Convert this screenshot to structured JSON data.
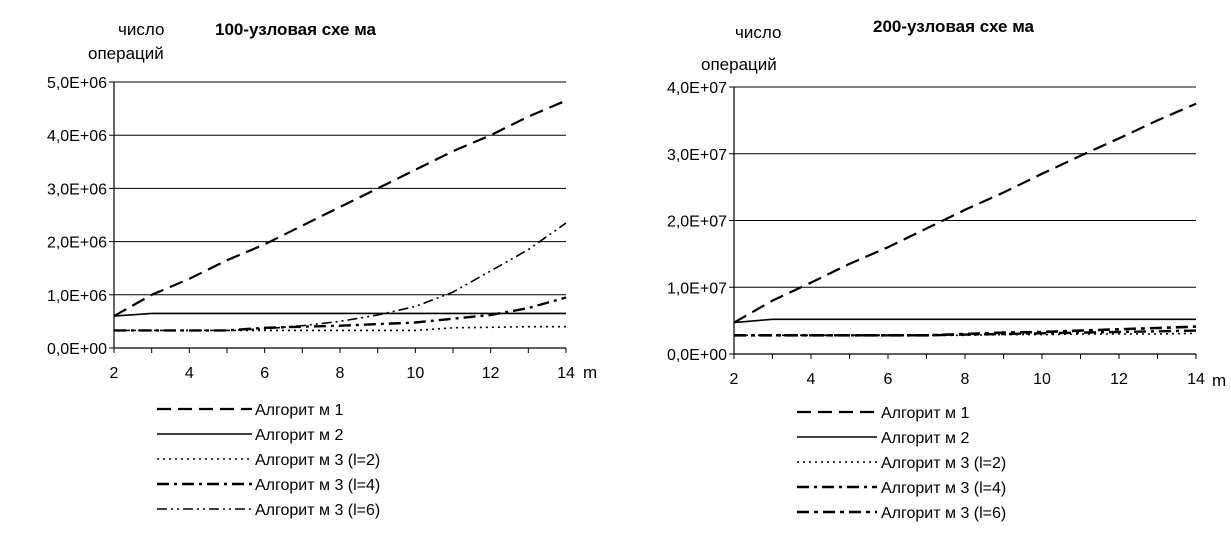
{
  "chart_data": [
    {
      "type": "line",
      "title": "100-узловая схе ма",
      "ylabel_line1": "число",
      "ylabel_line2": "операций",
      "xlabel": "m",
      "x": [
        2,
        3,
        4,
        5,
        6,
        7,
        8,
        9,
        10,
        11,
        12,
        13,
        14
      ],
      "xticks": [
        "2",
        "4",
        "6",
        "8",
        "10",
        "12",
        "14"
      ],
      "yticks": [
        "0,0E+00",
        "1,0E+06",
        "2,0E+06",
        "3,0E+06",
        "4,0E+06",
        "5,0E+06"
      ],
      "xlim": [
        2,
        14
      ],
      "ylim": [
        0,
        5000000
      ],
      "grid": "horizontal",
      "legend_position": "bottom",
      "series": [
        {
          "name": "Алгорит м 1",
          "style": "long-dash",
          "values": [
            600000,
            1000000,
            1300000,
            1650000,
            1950000,
            2300000,
            2650000,
            3000000,
            3350000,
            3700000,
            4000000,
            4350000,
            4650000
          ]
        },
        {
          "name": "Алгорит м 2",
          "style": "solid",
          "values": [
            600000,
            650000,
            650000,
            650000,
            650000,
            650000,
            650000,
            650000,
            650000,
            650000,
            650000,
            650000,
            650000
          ]
        },
        {
          "name": "Алгорит м 3 (l=2)",
          "style": "dotted",
          "values": [
            330000,
            330000,
            330000,
            330000,
            330000,
            330000,
            330000,
            330000,
            330000,
            380000,
            390000,
            400000,
            400000
          ]
        },
        {
          "name": "Алгорит м 3 (l=4)",
          "style": "dash-dot",
          "values": [
            330000,
            330000,
            330000,
            330000,
            380000,
            400000,
            420000,
            450000,
            480000,
            550000,
            620000,
            750000,
            950000
          ]
        },
        {
          "name": "Алгорит м 3 (l=6)",
          "style": "dash-dot-dot",
          "values": [
            330000,
            330000,
            330000,
            330000,
            360000,
            420000,
            500000,
            620000,
            780000,
            1050000,
            1450000,
            1850000,
            2350000
          ]
        }
      ]
    },
    {
      "type": "line",
      "title": "200-узловая схе ма",
      "ylabel_line1": "число",
      "ylabel_line2": "операций",
      "xlabel": "m",
      "x": [
        2,
        3,
        4,
        5,
        6,
        7,
        8,
        9,
        10,
        11,
        12,
        13,
        14
      ],
      "xticks": [
        "2",
        "4",
        "6",
        "8",
        "10",
        "12",
        "14"
      ],
      "yticks": [
        "0,0E+00",
        "1,0E+07",
        "2,0E+07",
        "3,0E+07",
        "4,0E+07"
      ],
      "xlim": [
        2,
        14
      ],
      "ylim": [
        0,
        40000000
      ],
      "grid": "horizontal",
      "legend_position": "bottom",
      "series": [
        {
          "name": "Алгорит м 1",
          "style": "long-dash",
          "values": [
            4700000,
            8000000,
            10700000,
            13500000,
            16000000,
            18800000,
            21600000,
            24200000,
            27000000,
            29700000,
            32300000,
            35000000,
            37500000
          ]
        },
        {
          "name": "Алгорит м 2",
          "style": "solid",
          "values": [
            4700000,
            5200000,
            5200000,
            5200000,
            5200000,
            5200000,
            5200000,
            5200000,
            5200000,
            5200000,
            5200000,
            5200000,
            5200000
          ]
        },
        {
          "name": "Алгорит м 3 (l=2)",
          "style": "dotted",
          "values": [
            2800000,
            2800000,
            2800000,
            2800000,
            2800000,
            2800000,
            2800000,
            2900000,
            2900000,
            3000000,
            3000000,
            3000000,
            3100000
          ]
        },
        {
          "name": "Алгорит м 3 (l=4)",
          "style": "dash-dot",
          "values": [
            2800000,
            2800000,
            2800000,
            2800000,
            2800000,
            2800000,
            2900000,
            3000000,
            3100000,
            3200000,
            3300000,
            3400000,
            3500000
          ]
        },
        {
          "name": "Алгорит м 3 (l=6)",
          "style": "dash-dot-bold",
          "values": [
            2800000,
            2800000,
            2800000,
            2800000,
            2800000,
            2800000,
            3000000,
            3200000,
            3300000,
            3500000,
            3700000,
            3900000,
            4100000
          ]
        }
      ]
    }
  ]
}
